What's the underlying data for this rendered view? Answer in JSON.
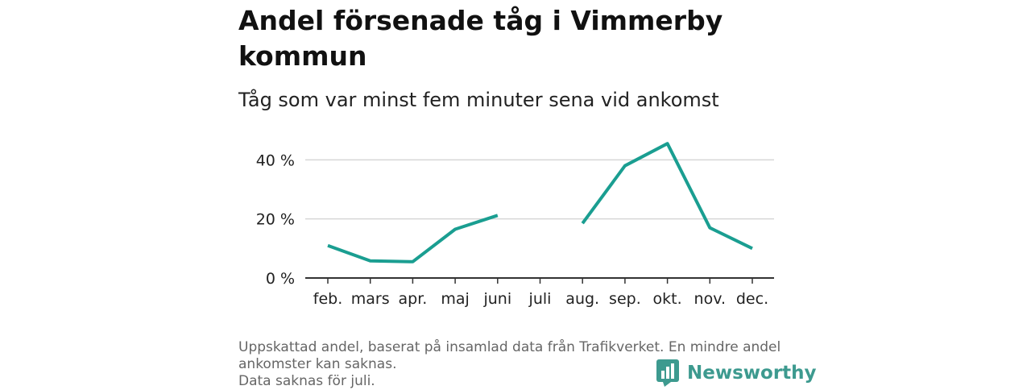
{
  "title": "Andel försenade tåg i Vimmerby kommun",
  "subtitle": "Tåg som var minst fem minuter sena vid ankomst",
  "chart_data": {
    "type": "line",
    "categories": [
      "feb.",
      "mars",
      "apr.",
      "maj",
      "juni",
      "juli",
      "aug.",
      "sep.",
      "okt.",
      "nov.",
      "dec."
    ],
    "series": [
      {
        "values": [
          11,
          5.8,
          5.5,
          16.5,
          21.2,
          null,
          18.5,
          38,
          45.5,
          17,
          10
        ],
        "color": "#1a9e91"
      }
    ],
    "yticks": [
      0,
      20,
      40
    ],
    "ytick_labels": [
      "0 %",
      "20 %",
      "40 %"
    ],
    "ylim": [
      0,
      50
    ],
    "grid": true
  },
  "footer": {
    "lines": [
      "Uppskattad andel, baserat på insamlad data från Trafikverket. En mindre andel",
      "ankomster kan saknas.",
      "Data saknas för juli."
    ]
  },
  "brand": {
    "name": "Newsworthy",
    "icon": "bar-chart-icon",
    "color": "#3d9a8f"
  }
}
